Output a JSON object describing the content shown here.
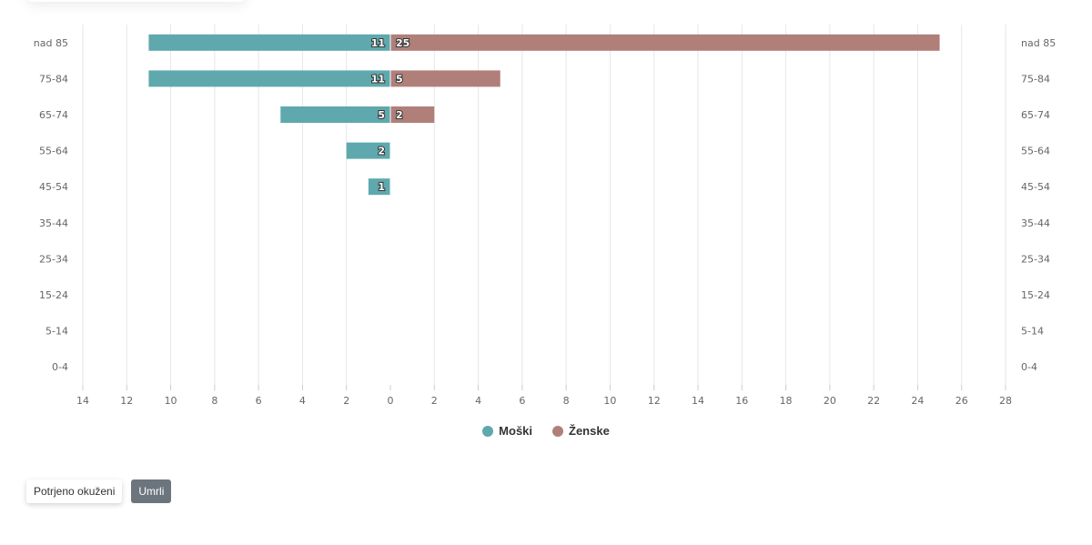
{
  "chart_data": {
    "type": "bar",
    "orientation": "horizontal-population-pyramid",
    "categories": [
      "nad 85",
      "75-84",
      "65-74",
      "55-64",
      "45-54",
      "35-44",
      "25-34",
      "15-24",
      "5-14",
      "0-4"
    ],
    "series": [
      {
        "name": "Moški",
        "color": "#5fa8ad",
        "side": "left",
        "values": [
          11,
          11,
          5,
          2,
          1,
          0,
          0,
          0,
          0,
          0
        ]
      },
      {
        "name": "Ženske",
        "color": "#b07f7a",
        "side": "right",
        "values": [
          25,
          5,
          2,
          0,
          0,
          0,
          0,
          0,
          0,
          0
        ]
      }
    ],
    "xlim": [
      -14,
      28
    ],
    "xticks": [
      "14",
      "12",
      "10",
      "8",
      "6",
      "4",
      "2",
      "0",
      "2",
      "4",
      "6",
      "8",
      "10",
      "12",
      "14",
      "16",
      "18",
      "20",
      "22",
      "24",
      "26",
      "28"
    ],
    "grid": true,
    "legend": "bottom-center"
  },
  "buttons": {
    "confirmed": "Potrjeno okuženi",
    "deaths": "Umrli"
  }
}
